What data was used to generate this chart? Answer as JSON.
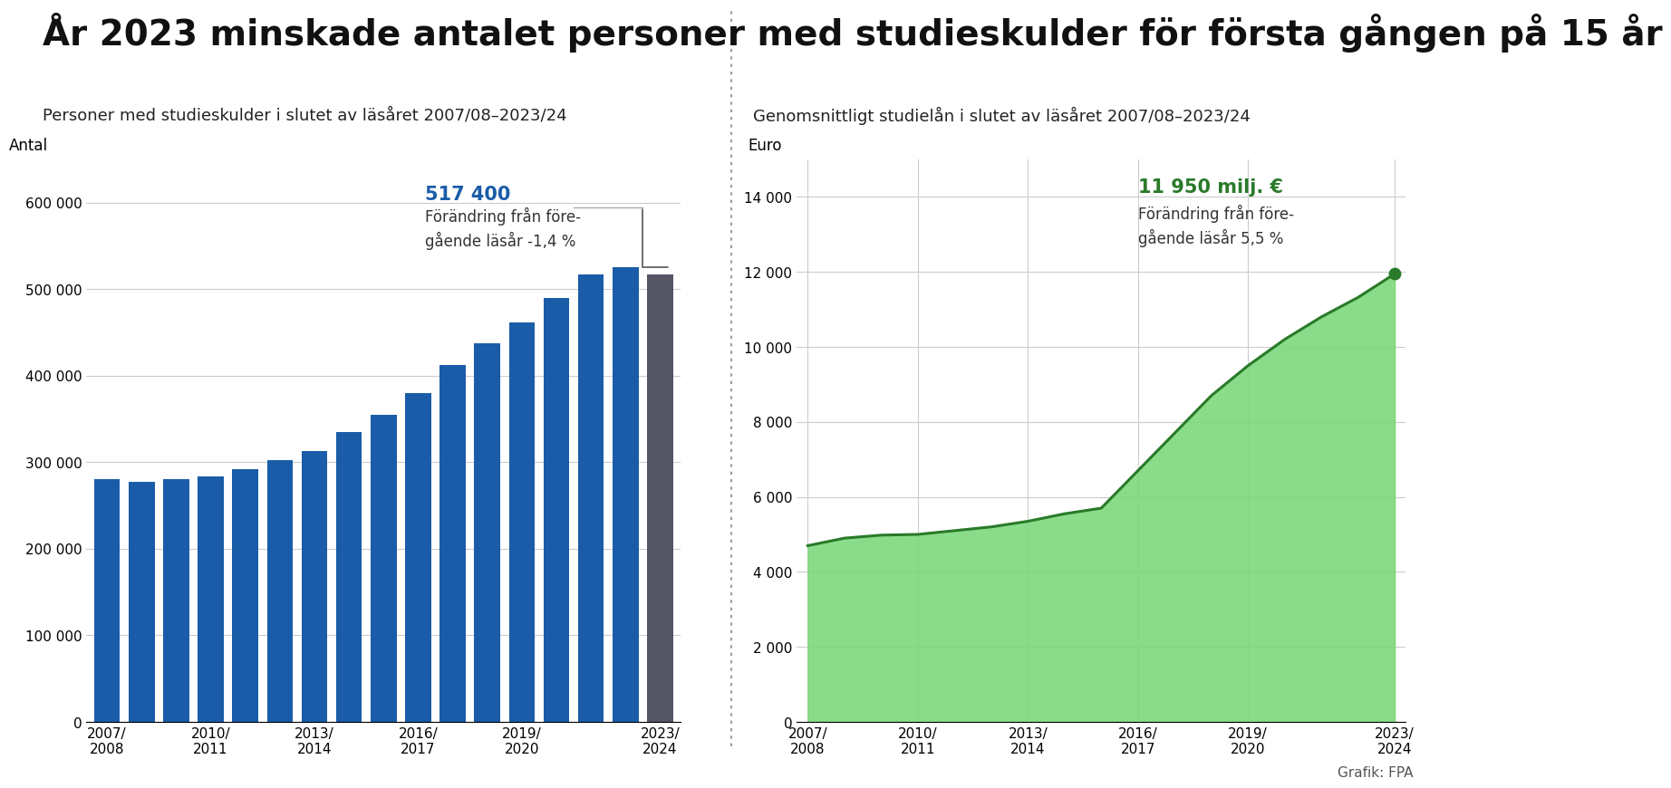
{
  "title": "År 2023 minskade antalet personer med studieskulder för första gången på 15 år",
  "left_subtitle": "Personer med studieskulder i slutet av läsåret 2007/08–2023/24",
  "right_subtitle": "Genomsnittligt studielån i slutet av läsåret 2007/08–2023/24",
  "left_ylabel": "Antal",
  "right_ylabel": "Euro",
  "bar_color": "#1a5ca8",
  "last_bar_color": "#555566",
  "area_color": "#7dd87d",
  "area_edge_color": "#2a7a2a",
  "bar_xtick_labels": [
    "2007/\n2008",
    "2010/\n2011",
    "2013/\n2014",
    "2016/\n2017",
    "2019/\n2020",
    "2023/\n2024"
  ],
  "bar_xtick_positions": [
    0,
    3,
    6,
    9,
    12,
    16
  ],
  "bar_values": [
    280000,
    277000,
    280000,
    284000,
    292000,
    302000,
    313000,
    335000,
    355000,
    380000,
    412000,
    437000,
    462000,
    490000,
    517000,
    525000,
    517400
  ],
  "bar_ylim": [
    0,
    650000
  ],
  "bar_yticks": [
    0,
    100000,
    200000,
    300000,
    400000,
    500000,
    600000
  ],
  "bar_ytick_labels": [
    "0",
    "100 000",
    "200 000",
    "300 000",
    "400 000",
    "500 000",
    "600 000"
  ],
  "bar_annotation_value": "517 400",
  "bar_annotation_change": "Förändring från före-\ngående läsår -1,4 %",
  "bar_annotation_color": "#1a5ca8",
  "line_xtick_labels": [
    "2007/\n2008",
    "2010/\n2011",
    "2013/\n2014",
    "2016/\n2017",
    "2019/\n2020",
    "2023/\n2024"
  ],
  "line_xtick_positions": [
    0,
    3,
    6,
    9,
    12,
    16
  ],
  "line_values": [
    4700,
    4900,
    4980,
    5000,
    5100,
    5200,
    5350,
    5550,
    5700,
    6700,
    7700,
    8700,
    9500,
    10200,
    10800,
    11320,
    11950
  ],
  "line_ylim": [
    0,
    15000
  ],
  "line_yticks": [
    0,
    2000,
    4000,
    6000,
    8000,
    10000,
    12000,
    14000
  ],
  "line_ytick_labels": [
    "0",
    "2 000",
    "4 000",
    "6 000",
    "8 000",
    "10 000",
    "12 000",
    "14 000"
  ],
  "line_annotation_value": "11 950 milj. €",
  "line_annotation_change": "Förändring från före-\ngående läsår 5,5 %",
  "line_annotation_color": "#2a7a2a",
  "divider_color": "#888888",
  "background_color": "#ffffff",
  "grid_color": "#cccccc",
  "credit": "Grafik: FPA",
  "title_fontsize": 28,
  "subtitle_fontsize": 13,
  "axis_label_fontsize": 12,
  "tick_fontsize": 11,
  "annotation_value_fontsize": 15,
  "annotation_change_fontsize": 12,
  "credit_fontsize": 11
}
